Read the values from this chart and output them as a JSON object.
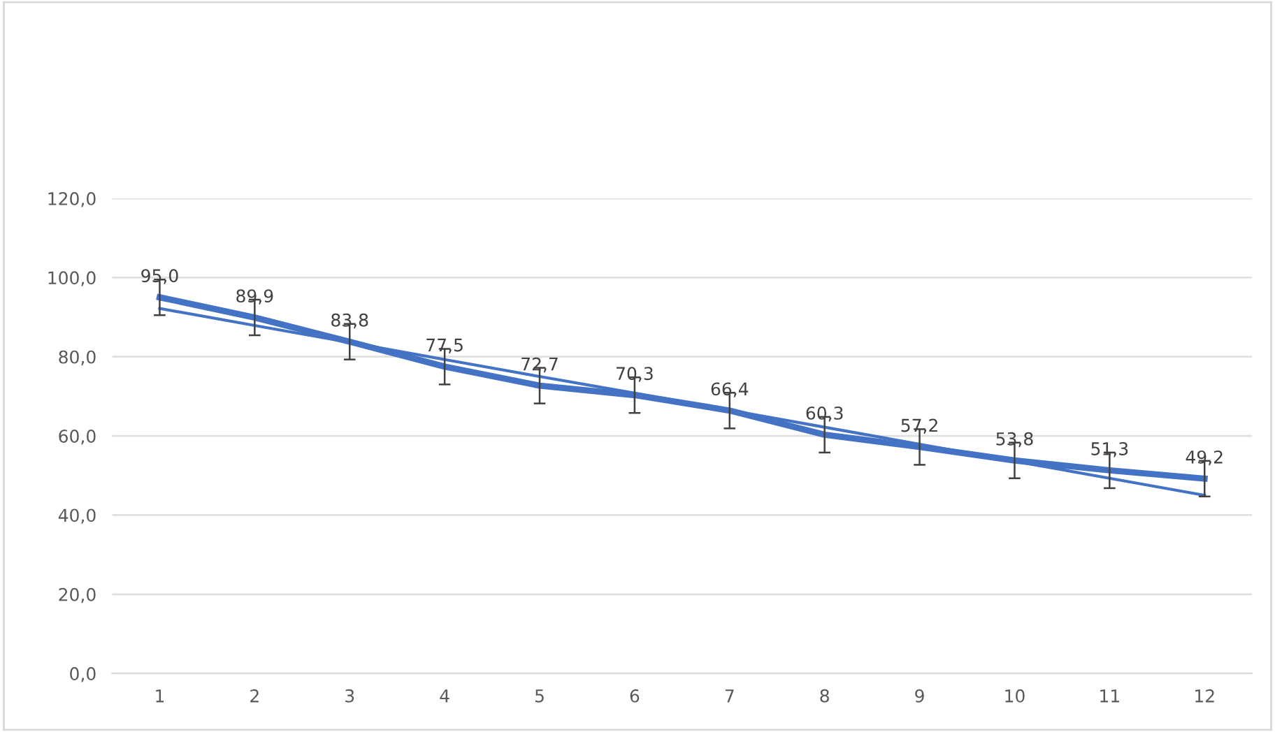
{
  "chart_data": {
    "type": "line",
    "categories": [
      "1",
      "2",
      "3",
      "4",
      "5",
      "6",
      "7",
      "8",
      "9",
      "10",
      "11",
      "12"
    ],
    "series": [
      {
        "color": "#4472c4",
        "values": [
          95.0,
          89.9,
          83.8,
          77.5,
          72.7,
          70.3,
          66.4,
          60.3,
          57.2,
          53.8,
          51.3,
          49.2
        ],
        "errors": [
          4.5,
          4.5,
          4.5,
          4.5,
          4.5,
          4.5,
          4.5,
          4.5,
          4.5,
          4.5,
          4.5,
          4.5
        ],
        "value_labels": [
          "95,0",
          "89,9",
          "83,8",
          "77,5",
          "72,7",
          "70,3",
          "66,4",
          "60,3",
          "57,2",
          "53,8",
          "51,3",
          "49,2"
        ]
      },
      {
        "type": "line",
        "color": "#4472c4",
        "values": [
          92.2,
          87.9,
          83.6,
          79.3,
          75.0,
          70.8,
          66.5,
          62.2,
          57.9,
          53.6,
          49.3,
          45.0
        ]
      }
    ],
    "ylim": [
      0,
      120
    ],
    "yticks": [
      {
        "value": 0,
        "label": "0,0"
      },
      {
        "value": 20,
        "label": "20,0"
      },
      {
        "value": 40,
        "label": "40,0"
      },
      {
        "value": 60,
        "label": "60,0"
      },
      {
        "value": 80,
        "label": "80,0"
      },
      {
        "value": 100,
        "label": "100,0"
      },
      {
        "value": 120,
        "label": "120,0"
      }
    ],
    "grid": "y",
    "marker": "none",
    "line_style": "solid",
    "legend": false
  }
}
